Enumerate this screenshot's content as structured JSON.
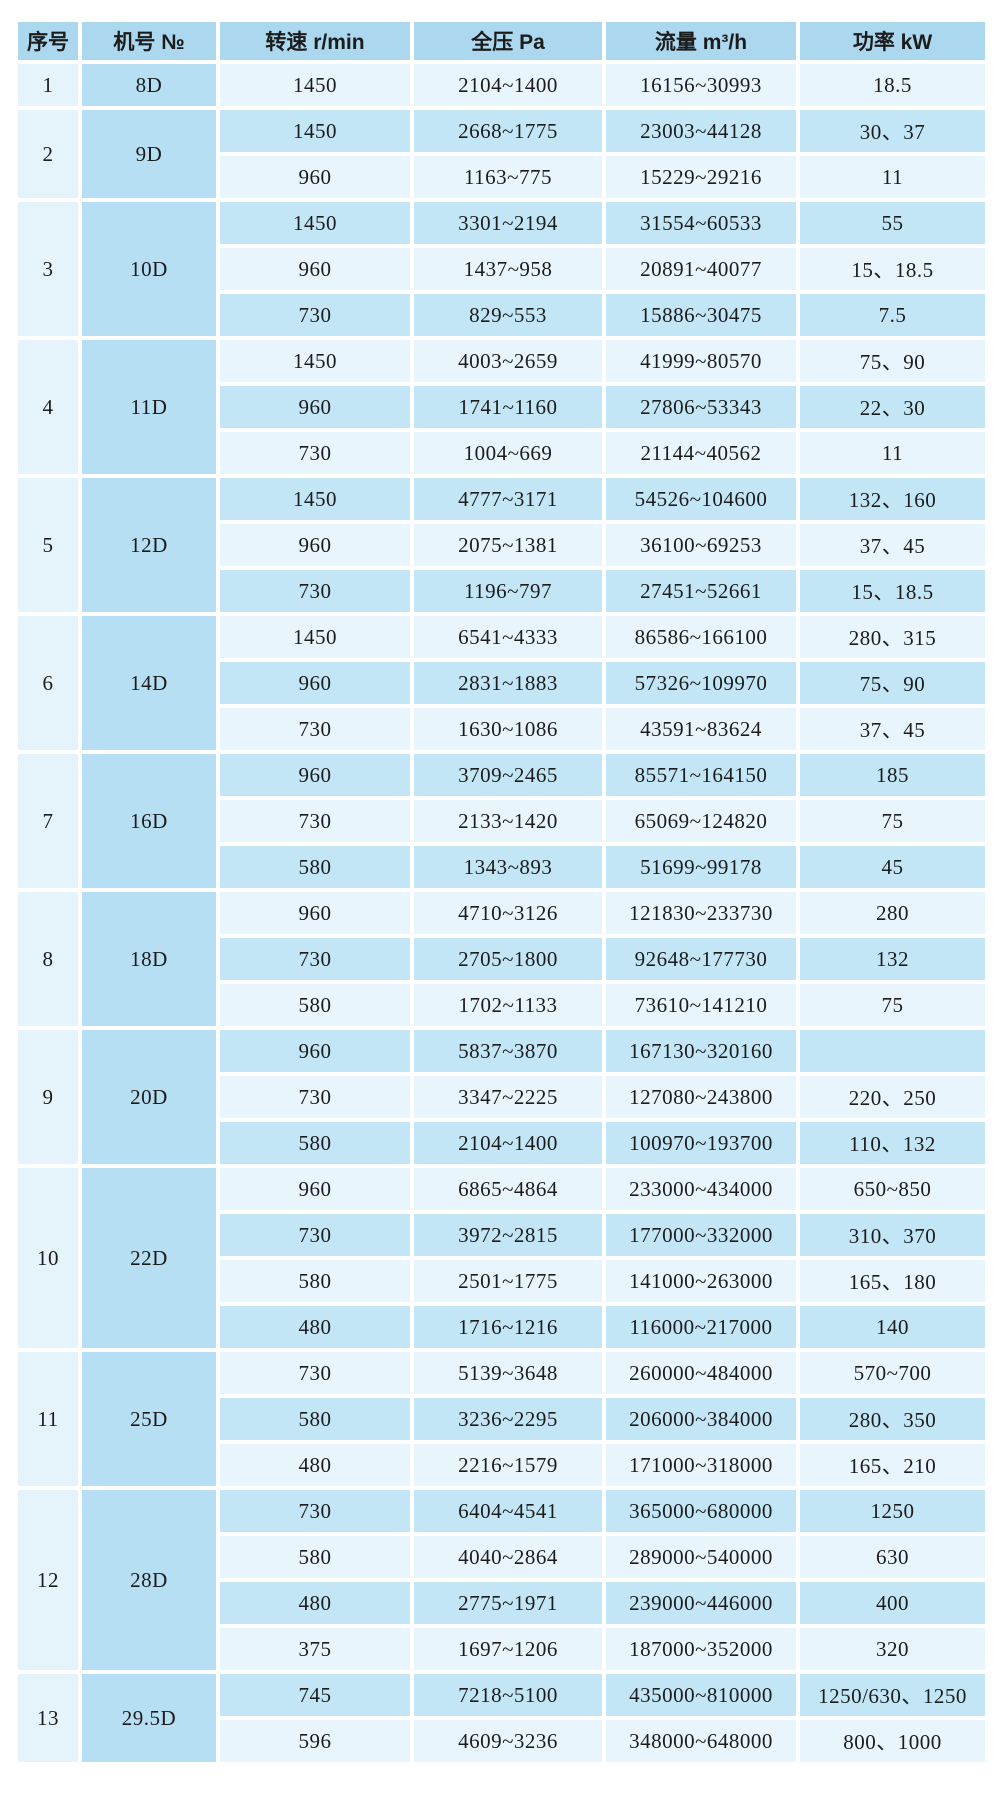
{
  "table": {
    "headers": [
      "序号",
      "机号 №",
      "转速 r/min",
      "全压 Pa",
      "流量 m³/h",
      "功率 kW"
    ],
    "colors": {
      "header_bg": "#abd8ef",
      "model_bg": "#b7dff3",
      "row_dark": "#c3e6f7",
      "row_light": "#e8f5fc",
      "serial_bg": "#e5f3fb",
      "border": "#ffffff",
      "text": "#1c1c1c"
    },
    "groups": [
      {
        "no": "1",
        "model": "8D",
        "rows": [
          [
            "1450",
            "2104~1400",
            "16156~30993",
            "18.5"
          ]
        ]
      },
      {
        "no": "2",
        "model": "9D",
        "rows": [
          [
            "1450",
            "2668~1775",
            "23003~44128",
            "30、37"
          ],
          [
            "960",
            "1163~775",
            "15229~29216",
            "11"
          ]
        ]
      },
      {
        "no": "3",
        "model": "10D",
        "rows": [
          [
            "1450",
            "3301~2194",
            "31554~60533",
            "55"
          ],
          [
            "960",
            "1437~958",
            "20891~40077",
            "15、18.5"
          ],
          [
            "730",
            "829~553",
            "15886~30475",
            "7.5"
          ]
        ]
      },
      {
        "no": "4",
        "model": "11D",
        "rows": [
          [
            "1450",
            "4003~2659",
            "41999~80570",
            "75、90"
          ],
          [
            "960",
            "1741~1160",
            "27806~53343",
            "22、30"
          ],
          [
            "730",
            "1004~669",
            "21144~40562",
            "11"
          ]
        ]
      },
      {
        "no": "5",
        "model": "12D",
        "rows": [
          [
            "1450",
            "4777~3171",
            "54526~104600",
            "132、160"
          ],
          [
            "960",
            "2075~1381",
            "36100~69253",
            "37、45"
          ],
          [
            "730",
            "1196~797",
            "27451~52661",
            "15、18.5"
          ]
        ]
      },
      {
        "no": "6",
        "model": "14D",
        "rows": [
          [
            "1450",
            "6541~4333",
            "86586~166100",
            "280、315"
          ],
          [
            "960",
            "2831~1883",
            "57326~109970",
            "75、90"
          ],
          [
            "730",
            "1630~1086",
            "43591~83624",
            "37、45"
          ]
        ]
      },
      {
        "no": "7",
        "model": "16D",
        "rows": [
          [
            "960",
            "3709~2465",
            "85571~164150",
            "185"
          ],
          [
            "730",
            "2133~1420",
            "65069~124820",
            "75"
          ],
          [
            "580",
            "1343~893",
            "51699~99178",
            "45"
          ]
        ]
      },
      {
        "no": "8",
        "model": "18D",
        "rows": [
          [
            "960",
            "4710~3126",
            "121830~233730",
            "280"
          ],
          [
            "730",
            "2705~1800",
            "92648~177730",
            "132"
          ],
          [
            "580",
            "1702~1133",
            "73610~141210",
            "75"
          ]
        ]
      },
      {
        "no": "9",
        "model": "20D",
        "rows": [
          [
            "960",
            "5837~3870",
            "167130~320160",
            ""
          ],
          [
            "730",
            "3347~2225",
            "127080~243800",
            "220、250"
          ],
          [
            "580",
            "2104~1400",
            "100970~193700",
            "110、132"
          ]
        ]
      },
      {
        "no": "10",
        "model": "22D",
        "rows": [
          [
            "960",
            "6865~4864",
            "233000~434000",
            "650~850"
          ],
          [
            "730",
            "3972~2815",
            "177000~332000",
            "310、370"
          ],
          [
            "580",
            "2501~1775",
            "141000~263000",
            "165、180"
          ],
          [
            "480",
            "1716~1216",
            "116000~217000",
            "140"
          ]
        ]
      },
      {
        "no": "11",
        "model": "25D",
        "rows": [
          [
            "730",
            "5139~3648",
            "260000~484000",
            "570~700"
          ],
          [
            "580",
            "3236~2295",
            "206000~384000",
            "280、350"
          ],
          [
            "480",
            "2216~1579",
            "171000~318000",
            "165、210"
          ]
        ]
      },
      {
        "no": "12",
        "model": "28D",
        "rows": [
          [
            "730",
            "6404~4541",
            "365000~680000",
            "1250"
          ],
          [
            "580",
            "4040~2864",
            "289000~540000",
            "630"
          ],
          [
            "480",
            "2775~1971",
            "239000~446000",
            "400"
          ],
          [
            "375",
            "1697~1206",
            "187000~352000",
            "320"
          ]
        ]
      },
      {
        "no": "13",
        "model": "29.5D",
        "rows": [
          [
            "745",
            "7218~5100",
            "435000~810000",
            "1250/630、1250"
          ],
          [
            "596",
            "4609~3236",
            "348000~648000",
            "800、1000"
          ]
        ]
      }
    ]
  }
}
